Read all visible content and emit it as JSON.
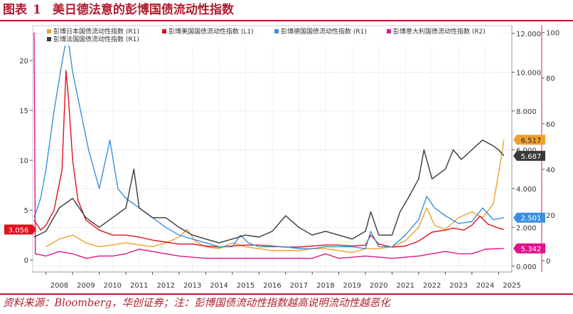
{
  "figure": {
    "label": "图表",
    "number": "1",
    "title": "美日德法意的彭博国债流动性指数",
    "source": "资料来源：Bloomberg，华创证券；注：彭博国债流动性指数越高说明流动性越恶化"
  },
  "chart_data": {
    "type": "line",
    "x_ticks": [
      "2008",
      "2009",
      "2010",
      "2011",
      "2012",
      "2013",
      "2014",
      "2015",
      "2016",
      "2017",
      "2018",
      "2019",
      "2020",
      "2021",
      "2022",
      "2023",
      "2024",
      "2025"
    ],
    "xlim": [
      2007.5,
      2025.5
    ],
    "axes": {
      "left": {
        "ticks": [
          0,
          5,
          10,
          15,
          20
        ],
        "lim": [
          -1.2,
          23.5
        ]
      },
      "right1": {
        "ticks": [
          "0.000",
          "2.000",
          "4.000",
          "6.000",
          "8.000",
          "10.000",
          "12.000"
        ],
        "lim": [
          -0.3,
          12.4
        ]
      },
      "right2": {
        "ticks": [
          0,
          20,
          40,
          60,
          80,
          100
        ],
        "lim": [
          -5,
          103
        ]
      }
    },
    "legend_position": "top",
    "grid": true,
    "series": [
      {
        "name": "彭博日本国债流动性指数 (R1)",
        "axis": "right1",
        "color": "#f0a030",
        "points": [
          [
            2008.0,
            1.0
          ],
          [
            2008.5,
            1.4
          ],
          [
            2009.0,
            1.6
          ],
          [
            2009.5,
            1.2
          ],
          [
            2010.0,
            1.0
          ],
          [
            2010.5,
            1.1
          ],
          [
            2011.0,
            1.2
          ],
          [
            2011.5,
            1.1
          ],
          [
            2012.0,
            1.0
          ],
          [
            2012.5,
            1.2
          ],
          [
            2013.0,
            1.5
          ],
          [
            2013.3,
            1.9
          ],
          [
            2013.6,
            1.3
          ],
          [
            2014.0,
            1.0
          ],
          [
            2014.5,
            0.9
          ],
          [
            2015.0,
            1.2
          ],
          [
            2015.5,
            1.0
          ],
          [
            2016.0,
            0.9
          ],
          [
            2016.5,
            0.8
          ],
          [
            2017.0,
            0.8
          ],
          [
            2017.5,
            0.8
          ],
          [
            2018.0,
            0.9
          ],
          [
            2018.5,
            0.9
          ],
          [
            2019.0,
            0.8
          ],
          [
            2019.5,
            0.7
          ],
          [
            2020.0,
            0.9
          ],
          [
            2020.5,
            0.9
          ],
          [
            2021.0,
            1.0
          ],
          [
            2021.5,
            1.3
          ],
          [
            2022.0,
            2.0
          ],
          [
            2022.3,
            3.0
          ],
          [
            2022.6,
            2.1
          ],
          [
            2023.0,
            1.9
          ],
          [
            2023.5,
            2.5
          ],
          [
            2024.0,
            2.8
          ],
          [
            2024.4,
            2.5
          ],
          [
            2024.8,
            3.2
          ],
          [
            2025.0,
            4.8
          ],
          [
            2025.1,
            5.6
          ],
          [
            2025.2,
            6.517
          ]
        ]
      },
      {
        "name": "彭博美国国债流动性指数 (L1)",
        "axis": "left",
        "color": "#e0101e",
        "points": [
          [
            2007.55,
            4.0
          ],
          [
            2007.8,
            3.0
          ],
          [
            2008.0,
            3.5
          ],
          [
            2008.3,
            5.0
          ],
          [
            2008.6,
            9.0
          ],
          [
            2008.75,
            19.0
          ],
          [
            2008.85,
            16.0
          ],
          [
            2009.0,
            10.0
          ],
          [
            2009.2,
            6.0
          ],
          [
            2009.5,
            4.0
          ],
          [
            2010.0,
            3.0
          ],
          [
            2010.5,
            2.5
          ],
          [
            2011.0,
            2.5
          ],
          [
            2011.5,
            2.3
          ],
          [
            2012.0,
            2.0
          ],
          [
            2012.5,
            1.8
          ],
          [
            2013.0,
            1.6
          ],
          [
            2013.5,
            1.6
          ],
          [
            2014.0,
            1.4
          ],
          [
            2014.5,
            1.3
          ],
          [
            2015.0,
            1.4
          ],
          [
            2015.5,
            1.5
          ],
          [
            2016.0,
            1.5
          ],
          [
            2016.5,
            1.4
          ],
          [
            2017.0,
            1.3
          ],
          [
            2017.5,
            1.3
          ],
          [
            2018.0,
            1.4
          ],
          [
            2018.5,
            1.5
          ],
          [
            2019.0,
            1.5
          ],
          [
            2019.5,
            1.4
          ],
          [
            2020.0,
            1.5
          ],
          [
            2020.2,
            2.5
          ],
          [
            2020.5,
            1.6
          ],
          [
            2021.0,
            1.3
          ],
          [
            2021.5,
            1.4
          ],
          [
            2022.0,
            1.9
          ],
          [
            2022.5,
            2.8
          ],
          [
            2023.0,
            3.0
          ],
          [
            2023.3,
            3.2
          ],
          [
            2023.7,
            3.0
          ],
          [
            2024.0,
            3.5
          ],
          [
            2024.3,
            4.4
          ],
          [
            2024.6,
            3.6
          ],
          [
            2025.0,
            3.2
          ],
          [
            2025.2,
            3.056
          ]
        ]
      },
      {
        "name": "彭博德国国债流动性指数 (R1)",
        "axis": "right1",
        "color": "#3b8fe0",
        "points": [
          [
            2007.55,
            2.5
          ],
          [
            2007.8,
            3.5
          ],
          [
            2008.0,
            5.0
          ],
          [
            2008.3,
            8.0
          ],
          [
            2008.6,
            10.5
          ],
          [
            2008.8,
            12.0
          ],
          [
            2009.0,
            10.0
          ],
          [
            2009.3,
            8.0
          ],
          [
            2009.6,
            6.0
          ],
          [
            2010.0,
            4.0
          ],
          [
            2010.4,
            6.5
          ],
          [
            2010.7,
            4.0
          ],
          [
            2011.0,
            3.5
          ],
          [
            2011.5,
            3.0
          ],
          [
            2012.0,
            2.5
          ],
          [
            2012.5,
            2.0
          ],
          [
            2013.0,
            1.6
          ],
          [
            2013.5,
            1.4
          ],
          [
            2014.0,
            1.2
          ],
          [
            2014.5,
            1.0
          ],
          [
            2015.0,
            1.0
          ],
          [
            2015.3,
            1.6
          ],
          [
            2015.6,
            1.2
          ],
          [
            2016.0,
            1.0
          ],
          [
            2016.5,
            1.0
          ],
          [
            2017.0,
            1.0
          ],
          [
            2017.5,
            0.9
          ],
          [
            2018.0,
            0.9
          ],
          [
            2018.5,
            1.0
          ],
          [
            2019.0,
            1.0
          ],
          [
            2019.5,
            1.0
          ],
          [
            2020.0,
            0.9
          ],
          [
            2020.2,
            1.8
          ],
          [
            2020.5,
            1.0
          ],
          [
            2021.0,
            1.0
          ],
          [
            2021.5,
            1.6
          ],
          [
            2022.0,
            2.4
          ],
          [
            2022.3,
            3.6
          ],
          [
            2022.6,
            3.0
          ],
          [
            2023.0,
            2.6
          ],
          [
            2023.5,
            2.2
          ],
          [
            2024.0,
            2.3
          ],
          [
            2024.4,
            3.0
          ],
          [
            2024.8,
            2.4
          ],
          [
            2025.2,
            2.501
          ]
        ]
      },
      {
        "name": "彭博意大利国债流动性指数 (R2)",
        "axis": "right2",
        "color": "#e0138c",
        "points": [
          [
            2007.55,
            100
          ],
          [
            2007.6,
            3
          ],
          [
            2008.0,
            2
          ],
          [
            2008.5,
            4
          ],
          [
            2009.0,
            3
          ],
          [
            2009.5,
            1
          ],
          [
            2010.0,
            2
          ],
          [
            2010.5,
            2
          ],
          [
            2011.0,
            3
          ],
          [
            2011.5,
            5
          ],
          [
            2012.0,
            4
          ],
          [
            2012.5,
            3
          ],
          [
            2013.0,
            2
          ],
          [
            2014.0,
            1
          ],
          [
            2015.0,
            1
          ],
          [
            2016.0,
            1
          ],
          [
            2017.0,
            1
          ],
          [
            2018.0,
            1
          ],
          [
            2018.5,
            3
          ],
          [
            2019.0,
            1
          ],
          [
            2020.0,
            2
          ],
          [
            2021.0,
            1
          ],
          [
            2022.0,
            2
          ],
          [
            2023.0,
            4
          ],
          [
            2023.5,
            3
          ],
          [
            2024.0,
            3
          ],
          [
            2024.5,
            5
          ],
          [
            2025.2,
            5.342
          ]
        ]
      },
      {
        "name": "彭博法国国债流动性指数 (R1)",
        "axis": "right1",
        "color": "#3a3a3a",
        "points": [
          [
            2007.55,
            1.5
          ],
          [
            2008.0,
            1.8
          ],
          [
            2008.5,
            3.0
          ],
          [
            2009.0,
            3.5
          ],
          [
            2009.5,
            2.5
          ],
          [
            2010.0,
            2.0
          ],
          [
            2010.5,
            2.5
          ],
          [
            2011.0,
            3.0
          ],
          [
            2011.3,
            5.0
          ],
          [
            2011.5,
            3.0
          ],
          [
            2012.0,
            2.5
          ],
          [
            2012.5,
            2.5
          ],
          [
            2013.0,
            2.0
          ],
          [
            2013.5,
            1.6
          ],
          [
            2014.0,
            1.4
          ],
          [
            2014.5,
            1.2
          ],
          [
            2015.0,
            1.4
          ],
          [
            2015.5,
            1.6
          ],
          [
            2016.0,
            1.5
          ],
          [
            2016.5,
            1.8
          ],
          [
            2017.0,
            2.6
          ],
          [
            2017.5,
            2.0
          ],
          [
            2018.0,
            1.6
          ],
          [
            2018.5,
            1.8
          ],
          [
            2019.0,
            1.6
          ],
          [
            2019.5,
            1.4
          ],
          [
            2020.0,
            1.8
          ],
          [
            2020.2,
            2.8
          ],
          [
            2020.5,
            1.6
          ],
          [
            2021.0,
            1.6
          ],
          [
            2021.3,
            2.8
          ],
          [
            2021.6,
            3.5
          ],
          [
            2022.0,
            4.5
          ],
          [
            2022.2,
            6.0
          ],
          [
            2022.5,
            4.5
          ],
          [
            2023.0,
            5.0
          ],
          [
            2023.3,
            6.0
          ],
          [
            2023.6,
            5.5
          ],
          [
            2024.0,
            6.0
          ],
          [
            2024.4,
            6.5
          ],
          [
            2024.8,
            6.2
          ],
          [
            2025.0,
            6.0
          ],
          [
            2025.2,
            5.687
          ]
        ]
      }
    ],
    "end_labels": [
      {
        "text": "6.517",
        "color": "#f0a030",
        "axis": "right1",
        "value": 6.517
      },
      {
        "text": "5.687",
        "color": "#3a3a3a",
        "axis": "right1",
        "value": 5.687
      },
      {
        "text": "2.501",
        "color": "#3b8fe0",
        "axis": "right1",
        "value": 2.501
      },
      {
        "text": "3.056",
        "color": "#e0101e",
        "axis": "left",
        "value": 3.056
      },
      {
        "text": "5.342",
        "color": "#e0138c",
        "axis": "right2",
        "value": 5.342
      }
    ]
  }
}
